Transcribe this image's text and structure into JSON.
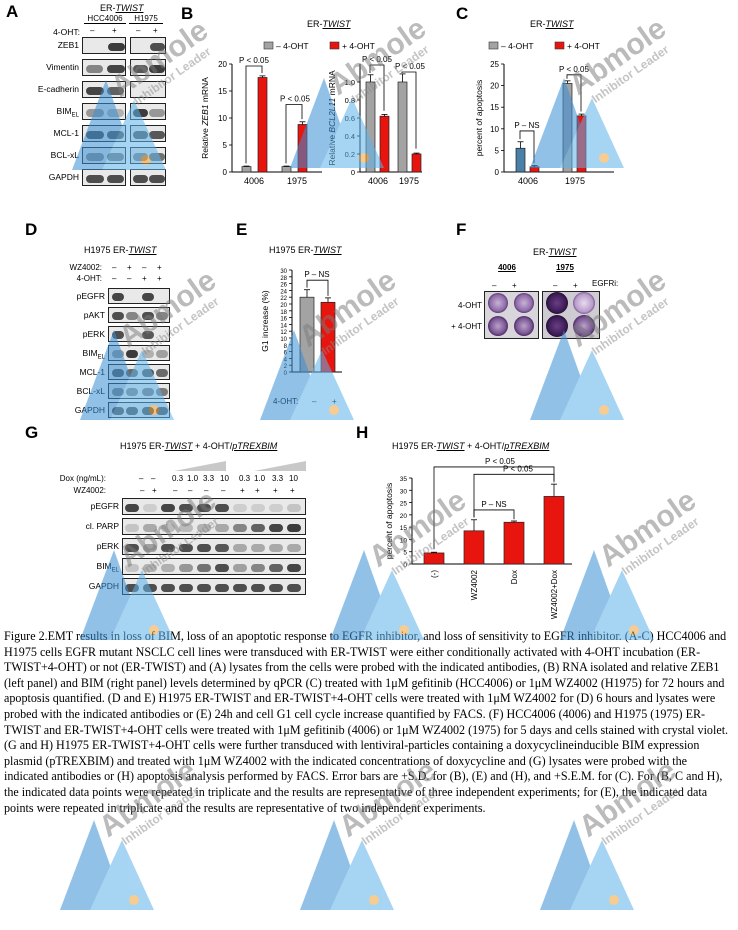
{
  "panel_letters": [
    "A",
    "B",
    "C",
    "D",
    "E",
    "F",
    "G",
    "H"
  ],
  "panelA": {
    "title_prefix": "ER-",
    "title_italic": "TWIST",
    "cell_lines": [
      "HCC4006",
      "H1975"
    ],
    "treatment_label": "4-OHT:",
    "treatment_signs": [
      "–",
      "+",
      "–",
      "+"
    ],
    "rows": [
      {
        "label": "ZEB1",
        "sub": ""
      },
      {
        "label": "Vimentin",
        "sub": ""
      },
      {
        "label": "E-cadherin",
        "sub": ""
      },
      {
        "label": "BIM",
        "sub": "EL"
      },
      {
        "label": "MCL-1",
        "sub": ""
      },
      {
        "label": "BCL-xL",
        "sub": ""
      },
      {
        "label": "GAPDH",
        "sub": ""
      }
    ]
  },
  "panelB": {
    "title_prefix": "ER-",
    "title_italic": "TWIST",
    "legend": [
      "– 4-OHT",
      "+ 4-OHT"
    ],
    "colors": {
      "minus": "#a3a3a3",
      "plus": "#e8150f"
    },
    "chart_data": [
      {
        "type": "bar",
        "ylabel": "Relative ZEB1 mRNA",
        "categories": [
          "4006",
          "1975"
        ],
        "ylim": [
          0,
          20
        ],
        "yticks": [
          "0",
          "5",
          "10",
          "15",
          "20"
        ],
        "series": [
          {
            "name": "– 4-OHT",
            "values": [
              1,
              1
            ],
            "errors": [
              0.1,
              0.1
            ]
          },
          {
            "name": "+ 4-OHT",
            "values": [
              17.5,
              8.8
            ],
            "errors": [
              0.3,
              0.5
            ]
          }
        ],
        "annotations": [
          "P < 0.05",
          "P < 0.05"
        ]
      },
      {
        "type": "bar",
        "ylabel": "Relative BCL2L11 mRNA",
        "categories": [
          "4006",
          "1975"
        ],
        "ylim": [
          0,
          1.2
        ],
        "yticks": [
          "0",
          "0.2",
          "0.4",
          "0.6",
          "0.8",
          "1.0"
        ],
        "series": [
          {
            "name": "– 4-OHT",
            "values": [
              1,
              1
            ],
            "errors": [
              0.08,
              0.09
            ]
          },
          {
            "name": "+ 4-OHT",
            "values": [
              0.62,
              0.2
            ],
            "errors": [
              0.02,
              0.01
            ]
          }
        ],
        "annotations": [
          "P < 0.05",
          "P < 0.05"
        ]
      }
    ]
  },
  "panelC": {
    "title_prefix": "ER-",
    "title_italic": "TWIST",
    "legend": [
      "– 4-OHT",
      "+ 4-OHT"
    ],
    "chart_data": {
      "type": "bar",
      "ylabel": "percent of apoptosis",
      "categories": [
        "4006",
        "1975"
      ],
      "ylim": [
        0,
        25
      ],
      "yticks": [
        "0",
        "5",
        "10",
        "15",
        "20",
        "25"
      ],
      "series": [
        {
          "name": "– 4-OHT",
          "values": [
            5.5,
            20.5
          ],
          "errors": [
            1.5,
            0.6
          ]
        },
        {
          "name": "+ 4-OHT",
          "values": [
            1.2,
            13
          ],
          "errors": [
            0.3,
            0.4
          ]
        }
      ],
      "annotations": [
        "P – NS",
        "P < 0.05"
      ]
    }
  },
  "panelD": {
    "title_prefix": "H1975 ER-",
    "title_italic": "TWIST",
    "treatments": [
      {
        "label": "WZ4002:",
        "signs": [
          "–",
          "+",
          "–",
          "+"
        ]
      },
      {
        "label": "4-OHT:",
        "signs": [
          "–",
          "–",
          "+",
          "+"
        ]
      }
    ],
    "rows": [
      {
        "label": "pEGFR",
        "sub": ""
      },
      {
        "label": "pAKT",
        "sub": ""
      },
      {
        "label": "pERK",
        "sub": ""
      },
      {
        "label": "BIM",
        "sub": "EL"
      },
      {
        "label": "MCL-1",
        "sub": ""
      },
      {
        "label": "BCL-xL",
        "sub": ""
      },
      {
        "label": "GAPDH",
        "sub": ""
      }
    ]
  },
  "panelE": {
    "title_prefix": "H1975 ER-",
    "title_italic": "TWIST",
    "treatment_label": "4-OHT:",
    "treatment_signs": [
      "–",
      "+"
    ],
    "chart_data": {
      "type": "bar",
      "ylabel": "G1 increase (%)",
      "categories": [
        "–",
        "+"
      ],
      "ylim": [
        0,
        30
      ],
      "yticks": [
        "0",
        "2",
        "4",
        "6",
        "8",
        "10",
        "12",
        "14",
        "16",
        "18",
        "20",
        "22",
        "24",
        "26",
        "28",
        "30"
      ],
      "values": [
        22,
        20.5
      ],
      "errors": [
        2.2,
        1.3
      ],
      "colors": [
        "#a3a3a3",
        "#e8150f"
      ],
      "annotations": [
        "P – NS"
      ]
    }
  },
  "panelF": {
    "title_prefix": "ER-",
    "title_italic": "TWIST",
    "cell_lines": [
      "4006",
      "1975"
    ],
    "treatment_label": "EGFRi:",
    "treatment_signs": [
      "–",
      "+",
      "–",
      "+"
    ],
    "row_labels": [
      "4-OHT",
      "+ 4-OHT"
    ]
  },
  "panelG": {
    "title_prefix": "H1975 ER-",
    "title_italic": "TWIST",
    "title_suffix": " + 4-OHT/",
    "title_italic2": "pTREXBIM",
    "dox_label": "Dox (ng/mL):",
    "dox_values": [
      "–",
      "–",
      "0.3",
      "1.0",
      "3.3",
      "10",
      "0.3",
      "1.0",
      "3.3",
      "10"
    ],
    "wz_label": "WZ4002:",
    "wz_signs": [
      "–",
      "+",
      "–",
      "–",
      "–",
      "–",
      "+",
      "+",
      "+",
      "+"
    ],
    "rows": [
      {
        "label": "pEGFR",
        "sub": ""
      },
      {
        "label": "cl. PARP",
        "sub": ""
      },
      {
        "label": "pERK",
        "sub": ""
      },
      {
        "label": "BIM",
        "sub": "EL"
      },
      {
        "label": "GAPDH",
        "sub": ""
      }
    ]
  },
  "panelH": {
    "title_prefix": "H1975 ER-",
    "title_italic": "TWIST",
    "title_suffix": " + 4-OHT/",
    "title_italic2": "pTREXBIM",
    "chart_data": {
      "type": "bar",
      "ylabel": "percent of apoptosis",
      "categories": [
        "(-)",
        "WZ4002",
        "Dox",
        "WZ4002+Dox"
      ],
      "ylim": [
        0,
        35
      ],
      "yticks": [
        "0",
        "5",
        "10",
        "15",
        "20",
        "25",
        "30",
        "35"
      ],
      "values": [
        4.5,
        13.5,
        17,
        27.5
      ],
      "errors": [
        0.3,
        4.5,
        0.5,
        5
      ],
      "color": "#e8150f",
      "annotations": [
        "P – NS",
        "P < 0.05",
        "P < 0.05"
      ]
    }
  },
  "watermark": {
    "brand": "Abmole",
    "tagline": "Inhibitor Leader"
  },
  "caption": "Figure 2.EMT results in loss of BIM, loss of an apoptotic response to EGFR inhibitor, and loss of sensitivity to EGFR inhibitor. (A-C) HCC4006 and H1975 cells EGFR mutant NSCLC cell lines were transduced with ER-TWIST were either conditionally activated with 4-OHT incubation (ER-TWIST+4-OHT) or not (ER-TWIST) and (A) lysates from the cells were probed with the indicated antibodies, (B) RNA isolated and relative ZEB1 (left panel) and BIM (right panel) levels determined by qPCR (C) treated with 1μM gefitinib (HCC4006) or 1μM WZ4002 (H1975) for 72 hours and apoptosis quantified. (D and E) H1975 ER-TWIST and ER-TWIST+4-OHT cells were treated with 1μM WZ4002 for (D) 6 hours and lysates were probed with the indicated antibodies or (E) 24h and cell G1 cell cycle increase quantified by FACS. (F) HCC4006 (4006) and H1975 (1975) ER-TWIST and ER-TWIST+4-OHT cells were treated with 1μM gefitinib (4006) or 1μM WZ4002 (1975) for 5 days and cells stained with crystal violet. (G and H) H1975 ER-TWIST+4-OHT cells were further transduced with lentiviral-particles containing a doxycyclineinducible BIM expression plasmid (pTREXBIM) and treated with 1μM WZ4002 with the indicated concentrations of doxycycline and (G) lysates were probed with the indicated antibodies or (H) apoptosis analysis performed by FACS. Error bars are +S.D. for (B), (E) and (H), and +S.E.M. for (C). For (B, C and H), the indicated data points were repeated in triplicate and the results are representative of three independent experiments; for (E), the indicated data points were repeated in triplicate and the results are representative of two independent experiments."
}
